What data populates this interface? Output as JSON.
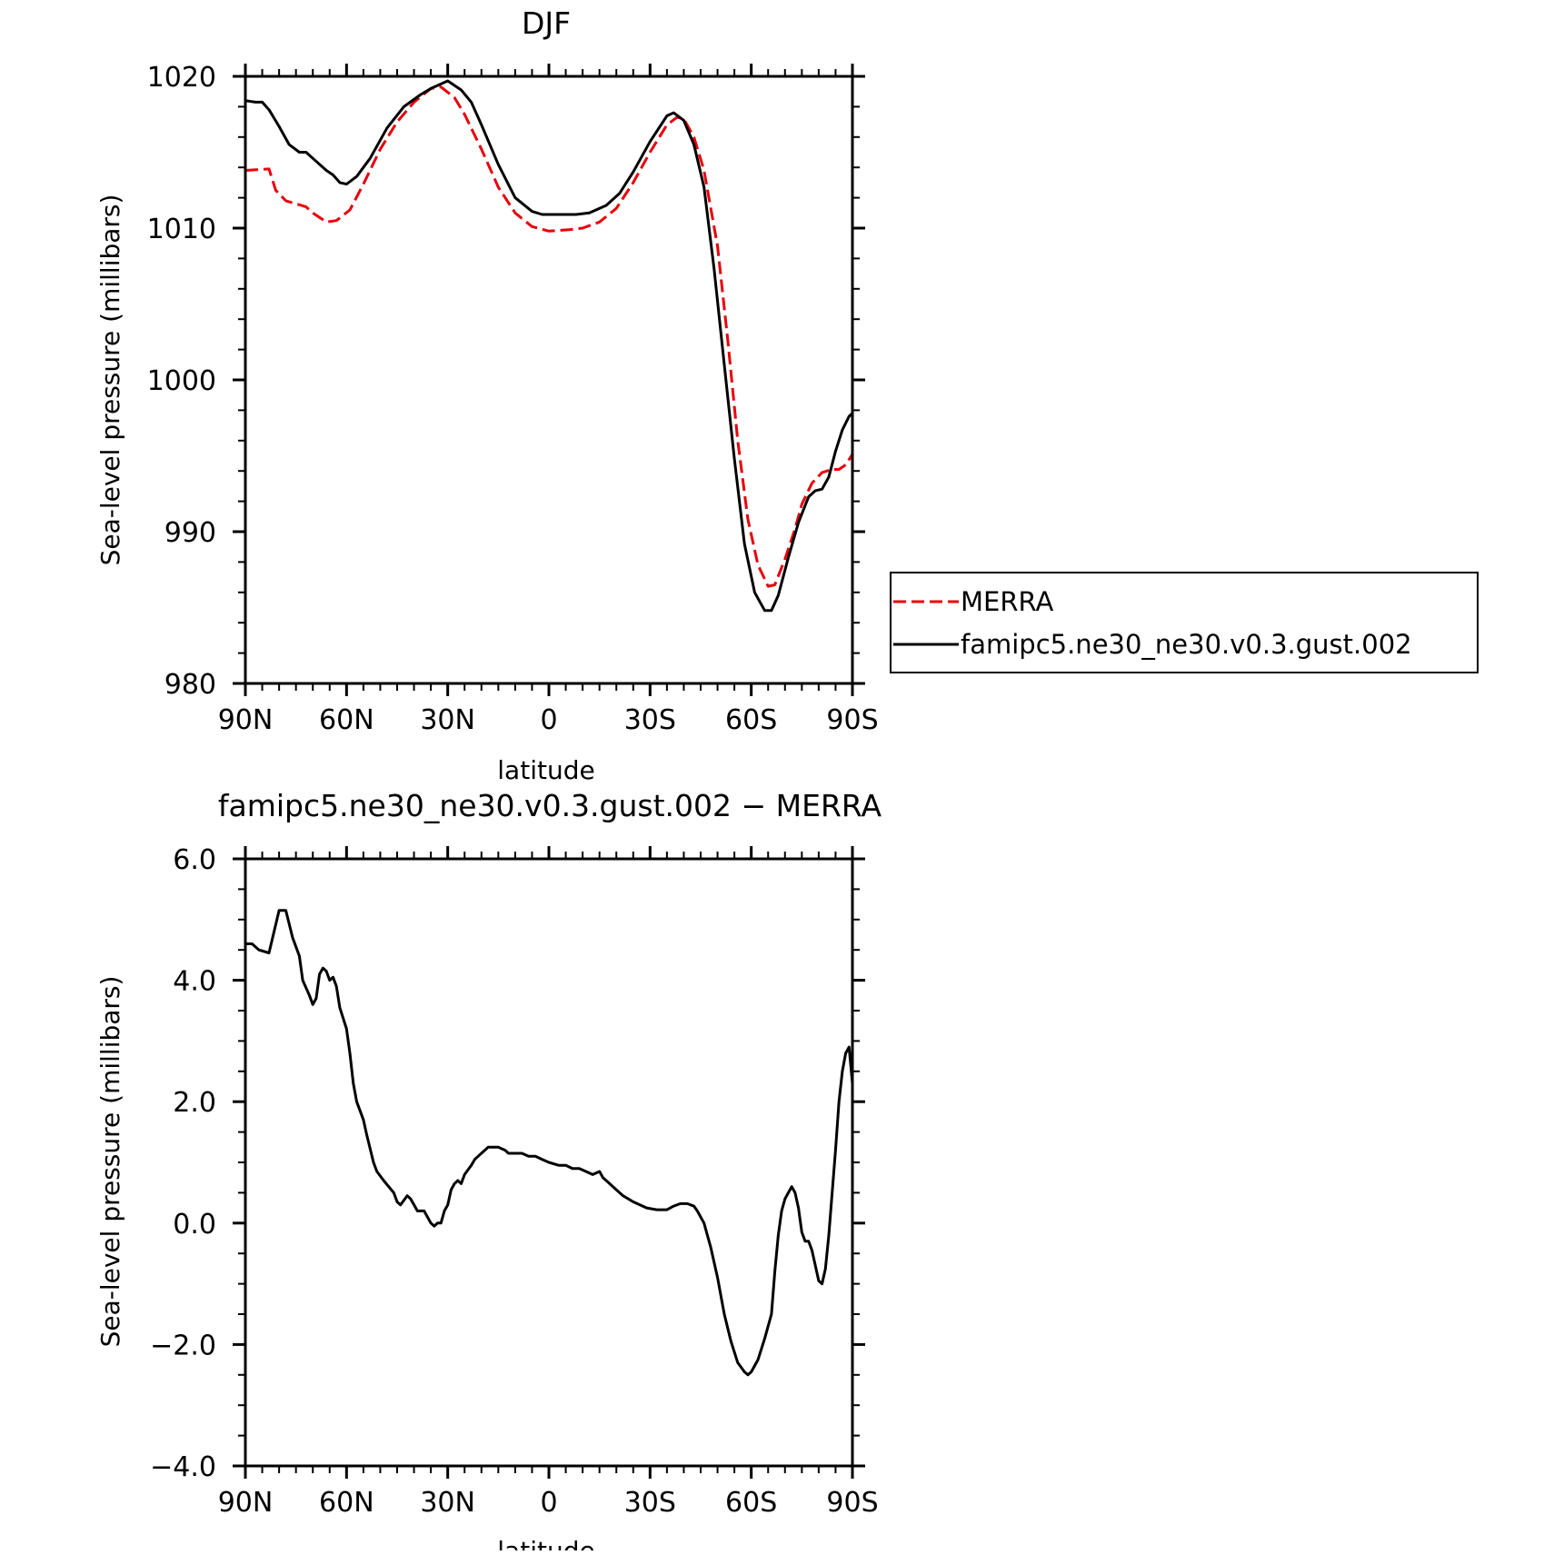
{
  "colors": {
    "merra": "#e8000b",
    "model": "#000000",
    "axis": "#000000"
  },
  "chart_data": [
    {
      "type": "line",
      "title": "DJF",
      "xlabel": "latitude",
      "ylabel": "Sea-level pressure (millibars)",
      "xlim": [
        90,
        -90
      ],
      "ylim": [
        980,
        1020
      ],
      "xticks": [
        90,
        60,
        30,
        0,
        -30,
        -60,
        -90
      ],
      "xtick_labels": [
        "90N",
        "60N",
        "30N",
        "0",
        "30S",
        "60S",
        "90S"
      ],
      "yticks": [
        980,
        990,
        1000,
        1010,
        1020
      ],
      "ytick_labels": [
        "980",
        "990",
        "1000",
        "1010",
        "1020"
      ],
      "legend_position": "right",
      "series": [
        {
          "name": "MERRA",
          "style": "dashed",
          "color": "#e8000b",
          "points": [
            [
              90,
              1013.8
            ],
            [
              83,
              1013.9
            ],
            [
              81,
              1012.5
            ],
            [
              78,
              1011.8
            ],
            [
              72,
              1011.4
            ],
            [
              70,
              1011.0
            ],
            [
              66,
              1010.4
            ],
            [
              63,
              1010.5
            ],
            [
              59,
              1011.2
            ],
            [
              55,
              1012.9
            ],
            [
              50,
              1015.2
            ],
            [
              45,
              1017.0
            ],
            [
              40,
              1018.3
            ],
            [
              35,
              1019.2
            ],
            [
              32,
              1019.3
            ],
            [
              28,
              1018.6
            ],
            [
              25,
              1017.5
            ],
            [
              20,
              1015.2
            ],
            [
              15,
              1012.7
            ],
            [
              10,
              1011.0
            ],
            [
              5,
              1010.1
            ],
            [
              0,
              1009.8
            ],
            [
              -6,
              1009.9
            ],
            [
              -10,
              1010.0
            ],
            [
              -15,
              1010.4
            ],
            [
              -20,
              1011.3
            ],
            [
              -25,
              1013.0
            ],
            [
              -30,
              1015.0
            ],
            [
              -35,
              1016.8
            ],
            [
              -38,
              1017.3
            ],
            [
              -40,
              1017.2
            ],
            [
              -43,
              1016.0
            ],
            [
              -46,
              1013.8
            ],
            [
              -50,
              1008.8
            ],
            [
              -53,
              1002.7
            ],
            [
              -56,
              996.0
            ],
            [
              -59,
              990.8
            ],
            [
              -62,
              987.8
            ],
            [
              -65,
              986.4
            ],
            [
              -67,
              986.5
            ],
            [
              -70,
              988.2
            ],
            [
              -73,
              990.2
            ],
            [
              -75,
              991.8
            ],
            [
              -78,
              993.2
            ],
            [
              -81,
              993.9
            ],
            [
              -84,
              994.1
            ],
            [
              -86,
              994.1
            ],
            [
              -88,
              994.4
            ],
            [
              -90,
              995.1
            ]
          ]
        },
        {
          "name": "famipc5.ne30_ne30.v0.3.gust.002",
          "style": "solid",
          "color": "#000000",
          "points": [
            [
              90,
              1018.4
            ],
            [
              87,
              1018.3
            ],
            [
              85,
              1018.3
            ],
            [
              83,
              1017.8
            ],
            [
              80,
              1016.7
            ],
            [
              77,
              1015.5
            ],
            [
              74,
              1015.0
            ],
            [
              72,
              1015.0
            ],
            [
              70,
              1014.6
            ],
            [
              66,
              1013.8
            ],
            [
              64,
              1013.5
            ],
            [
              62,
              1013.0
            ],
            [
              60,
              1012.9
            ],
            [
              57,
              1013.4
            ],
            [
              53,
              1014.6
            ],
            [
              48,
              1016.6
            ],
            [
              43,
              1018.0
            ],
            [
              38,
              1018.8
            ],
            [
              35,
              1019.2
            ],
            [
              32,
              1019.5
            ],
            [
              30,
              1019.7
            ],
            [
              26,
              1019.1
            ],
            [
              23,
              1018.3
            ],
            [
              20,
              1016.8
            ],
            [
              15,
              1014.2
            ],
            [
              10,
              1012.0
            ],
            [
              5,
              1011.1
            ],
            [
              2,
              1010.9
            ],
            [
              -3,
              1010.9
            ],
            [
              -8,
              1010.9
            ],
            [
              -12,
              1011.0
            ],
            [
              -17,
              1011.5
            ],
            [
              -21,
              1012.3
            ],
            [
              -25,
              1013.7
            ],
            [
              -30,
              1015.7
            ],
            [
              -35,
              1017.4
            ],
            [
              -37,
              1017.6
            ],
            [
              -40,
              1017.1
            ],
            [
              -43,
              1015.5
            ],
            [
              -46,
              1012.7
            ],
            [
              -49,
              1007.3
            ],
            [
              -52,
              1001.0
            ],
            [
              -55,
              994.8
            ],
            [
              -58,
              989.2
            ],
            [
              -61,
              986.0
            ],
            [
              -64,
              984.8
            ],
            [
              -66,
              984.8
            ],
            [
              -68,
              985.8
            ],
            [
              -71,
              988.3
            ],
            [
              -74,
              990.6
            ],
            [
              -77,
              992.3
            ],
            [
              -79,
              992.7
            ],
            [
              -81,
              992.8
            ],
            [
              -83,
              993.6
            ],
            [
              -85,
              995.3
            ],
            [
              -87,
              996.7
            ],
            [
              -89,
              997.6
            ],
            [
              -90,
              997.8
            ]
          ]
        }
      ]
    },
    {
      "type": "line",
      "title": "famipc5.ne30_ne30.v0.3.gust.002 − MERRA",
      "xlabel": "latitude",
      "ylabel": "Sea-level pressure (millibars)",
      "xlim": [
        90,
        -90
      ],
      "ylim": [
        -4.0,
        6.0
      ],
      "xticks": [
        90,
        60,
        30,
        0,
        -30,
        -60,
        -90
      ],
      "xtick_labels": [
        "90N",
        "60N",
        "30N",
        "0",
        "30S",
        "60S",
        "90S"
      ],
      "yticks": [
        -4,
        -2,
        0,
        2,
        4,
        6
      ],
      "ytick_labels": [
        "−4.0",
        "−2.0",
        "0.0",
        "2.0",
        "4.0",
        "6.0"
      ],
      "series": [
        {
          "style": "solid",
          "color": "#000000",
          "points": [
            [
              90,
              4.6
            ],
            [
              88,
              4.6
            ],
            [
              86,
              4.5
            ],
            [
              83,
              4.45
            ],
            [
              80,
              5.15
            ],
            [
              78,
              5.15
            ],
            [
              76,
              4.7
            ],
            [
              74,
              4.4
            ],
            [
              73,
              4.0
            ],
            [
              71,
              3.75
            ],
            [
              70,
              3.6
            ],
            [
              69,
              3.7
            ],
            [
              68,
              4.1
            ],
            [
              67,
              4.2
            ],
            [
              66,
              4.15
            ],
            [
              65,
              4.0
            ],
            [
              64,
              4.05
            ],
            [
              63,
              3.9
            ],
            [
              62,
              3.55
            ],
            [
              60,
              3.2
            ],
            [
              59,
              2.8
            ],
            [
              58,
              2.3
            ],
            [
              57,
              2.0
            ],
            [
              55,
              1.7
            ],
            [
              54,
              1.45
            ],
            [
              52,
              1.0
            ],
            [
              51,
              0.85
            ],
            [
              49,
              0.7
            ],
            [
              46,
              0.5
            ],
            [
              45,
              0.35
            ],
            [
              44,
              0.3
            ],
            [
              42,
              0.45
            ],
            [
              41,
              0.4
            ],
            [
              40,
              0.3
            ],
            [
              39,
              0.2
            ],
            [
              37,
              0.2
            ],
            [
              36,
              0.1
            ],
            [
              35,
              0.0
            ],
            [
              34,
              -0.05
            ],
            [
              33,
              0.0
            ],
            [
              32,
              0.0
            ],
            [
              31,
              0.2
            ],
            [
              30,
              0.3
            ],
            [
              29,
              0.55
            ],
            [
              28,
              0.65
            ],
            [
              27,
              0.7
            ],
            [
              26,
              0.65
            ],
            [
              25,
              0.8
            ],
            [
              23,
              0.95
            ],
            [
              22,
              1.05
            ],
            [
              21,
              1.1
            ],
            [
              19,
              1.2
            ],
            [
              18,
              1.25
            ],
            [
              15,
              1.25
            ],
            [
              13,
              1.2
            ],
            [
              12,
              1.15
            ],
            [
              10,
              1.15
            ],
            [
              8,
              1.15
            ],
            [
              6,
              1.1
            ],
            [
              4,
              1.1
            ],
            [
              2,
              1.05
            ],
            [
              0,
              1.0
            ],
            [
              -3,
              0.95
            ],
            [
              -5,
              0.95
            ],
            [
              -7,
              0.9
            ],
            [
              -9,
              0.9
            ],
            [
              -11,
              0.85
            ],
            [
              -13,
              0.8
            ],
            [
              -15,
              0.85
            ],
            [
              -16,
              0.75
            ],
            [
              -18,
              0.65
            ],
            [
              -20,
              0.55
            ],
            [
              -22,
              0.45
            ],
            [
              -25,
              0.35
            ],
            [
              -27,
              0.3
            ],
            [
              -29,
              0.25
            ],
            [
              -32,
              0.22
            ],
            [
              -35,
              0.22
            ],
            [
              -37,
              0.28
            ],
            [
              -39,
              0.32
            ],
            [
              -41,
              0.32
            ],
            [
              -43,
              0.28
            ],
            [
              -44,
              0.2
            ],
            [
              -46,
              0.0
            ],
            [
              -48,
              -0.4
            ],
            [
              -50,
              -0.9
            ],
            [
              -52,
              -1.5
            ],
            [
              -54,
              -1.95
            ],
            [
              -56,
              -2.3
            ],
            [
              -58,
              -2.45
            ],
            [
              -59,
              -2.5
            ],
            [
              -60,
              -2.45
            ],
            [
              -62,
              -2.25
            ],
            [
              -64,
              -1.9
            ],
            [
              -66,
              -1.5
            ],
            [
              -67,
              -0.8
            ],
            [
              -68,
              -0.2
            ],
            [
              -69,
              0.2
            ],
            [
              -70,
              0.4
            ],
            [
              -71,
              0.5
            ],
            [
              -72,
              0.6
            ],
            [
              -73,
              0.5
            ],
            [
              -74,
              0.25
            ],
            [
              -75,
              -0.15
            ],
            [
              -76,
              -0.3
            ],
            [
              -77,
              -0.3
            ],
            [
              -78,
              -0.45
            ],
            [
              -79,
              -0.7
            ],
            [
              -80,
              -0.95
            ],
            [
              -81,
              -1.0
            ],
            [
              -82,
              -0.75
            ],
            [
              -83,
              -0.2
            ],
            [
              -84,
              0.5
            ],
            [
              -85,
              1.2
            ],
            [
              -86,
              2.0
            ],
            [
              -87,
              2.5
            ],
            [
              -88,
              2.8
            ],
            [
              -89,
              2.9
            ],
            [
              -90,
              2.3
            ]
          ]
        }
      ]
    }
  ]
}
